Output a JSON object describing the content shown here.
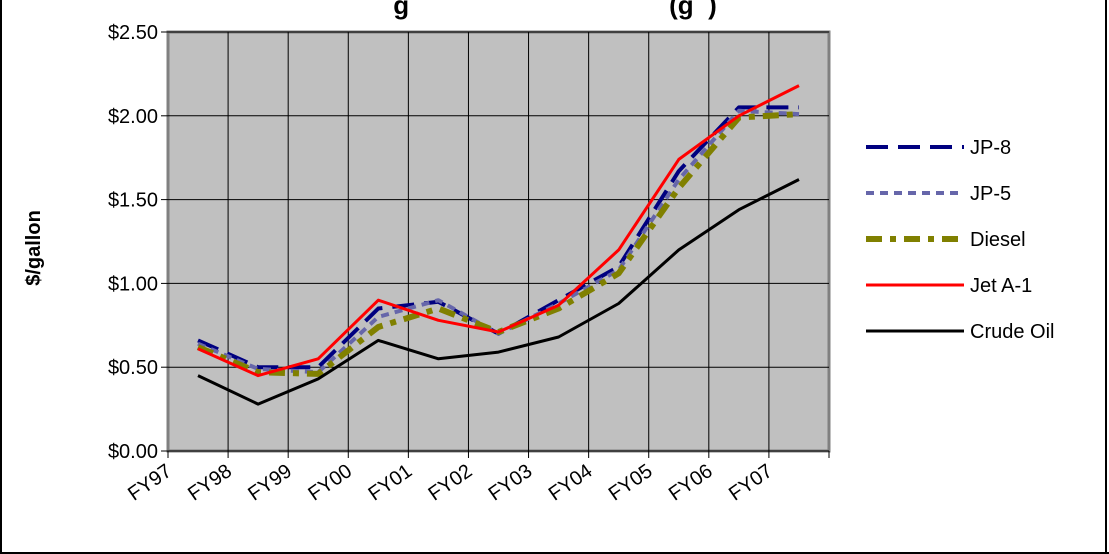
{
  "chart_data": {
    "type": "line",
    "title": "g                                    (g  )",
    "ylabel": "$/gallon",
    "xlabel": "",
    "categories": [
      "FY97",
      "FY98",
      "FY99",
      "FY00",
      "FY01",
      "FY02",
      "FY03",
      "FY04",
      "FY05",
      "FY06",
      "FY07"
    ],
    "ylim": [
      0,
      2.5
    ],
    "y_ticks": [
      "$0.00",
      "$0.50",
      "$1.00",
      "$1.50",
      "$2.00",
      "$2.50"
    ],
    "y_tick_values": [
      0,
      0.5,
      1.0,
      1.5,
      2.0,
      2.5
    ],
    "grid": true,
    "legend_position": "right",
    "plot_background": "#c0c0c0",
    "series": [
      {
        "name": "JP-8",
        "color": "#000080",
        "dash": "long-dash",
        "values": [
          0.66,
          0.5,
          0.5,
          0.85,
          0.89,
          0.7,
          0.9,
          1.1,
          1.67,
          2.05,
          2.05
        ]
      },
      {
        "name": "JP-5",
        "color": "#6666aa",
        "dash": "dot",
        "values": [
          0.64,
          0.49,
          0.47,
          0.8,
          0.9,
          0.7,
          0.88,
          1.08,
          1.62,
          2.03,
          2.01
        ]
      },
      {
        "name": "Diesel",
        "color": "#808000",
        "dash": "dash-dot",
        "values": [
          0.62,
          0.47,
          0.46,
          0.74,
          0.85,
          0.71,
          0.85,
          1.06,
          1.57,
          1.99,
          2.01
        ]
      },
      {
        "name": "Jet A-1",
        "color": "#ff0000",
        "dash": "solid",
        "values": [
          0.61,
          0.45,
          0.55,
          0.9,
          0.78,
          0.71,
          0.87,
          1.2,
          1.74,
          2.0,
          2.18
        ]
      },
      {
        "name": "Crude Oil",
        "color": "#000000",
        "dash": "solid",
        "values": [
          0.45,
          0.28,
          0.43,
          0.66,
          0.55,
          0.59,
          0.68,
          0.88,
          1.2,
          1.44,
          1.62
        ]
      }
    ]
  }
}
